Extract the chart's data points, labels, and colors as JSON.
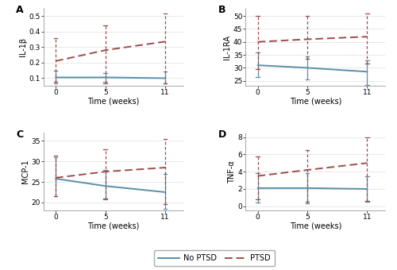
{
  "time": [
    0,
    5,
    11
  ],
  "panels": [
    {
      "label": "A",
      "ylabel": "IL-1β",
      "ylim": [
        0.05,
        0.55
      ],
      "yticks": [
        0.1,
        0.2,
        0.3,
        0.4,
        0.5
      ],
      "no_ptsd": {
        "mean": [
          0.105,
          0.105,
          0.1
        ],
        "ci_low": [
          0.065,
          0.075,
          0.065
        ],
        "ci_high": [
          0.15,
          0.135,
          0.145
        ]
      },
      "ptsd": {
        "mean": [
          0.21,
          0.28,
          0.335
        ],
        "ci_low": [
          0.075,
          0.065,
          0.065
        ],
        "ci_high": [
          0.355,
          0.44,
          0.515
        ]
      }
    },
    {
      "label": "B",
      "ylabel": "IL-1RA",
      "ylim": [
        23,
        53
      ],
      "yticks": [
        25,
        30,
        35,
        40,
        45,
        50
      ],
      "no_ptsd": {
        "mean": [
          31.0,
          30.0,
          28.5
        ],
        "ci_low": [
          26.5,
          25.5,
          23.5
        ],
        "ci_high": [
          36.0,
          34.5,
          33.0
        ]
      },
      "ptsd": {
        "mean": [
          40.0,
          41.0,
          42.0
        ],
        "ci_low": [
          29.5,
          33.5,
          31.5
        ],
        "ci_high": [
          50.0,
          50.0,
          51.0
        ]
      }
    },
    {
      "label": "C",
      "ylabel": "MCP-1",
      "ylim": [
        18,
        37
      ],
      "yticks": [
        20,
        25,
        30,
        35
      ],
      "no_ptsd": {
        "mean": [
          25.8,
          24.0,
          22.5
        ],
        "ci_low": [
          21.5,
          20.8,
          18.5
        ],
        "ci_high": [
          31.0,
          28.0,
          27.0
        ]
      },
      "ptsd": {
        "mean": [
          26.0,
          27.5,
          28.5
        ],
        "ci_low": [
          21.5,
          21.0,
          19.5
        ],
        "ci_high": [
          31.5,
          33.0,
          35.5
        ]
      }
    },
    {
      "label": "D",
      "ylabel": "TNF-α",
      "ylim": [
        -0.5,
        8.5
      ],
      "yticks": [
        0,
        2,
        4,
        6,
        8
      ],
      "no_ptsd": {
        "mean": [
          2.1,
          2.1,
          2.0
        ],
        "ci_low": [
          0.4,
          0.3,
          0.5
        ],
        "ci_high": [
          3.8,
          3.8,
          3.5
        ]
      },
      "ptsd": {
        "mean": [
          3.5,
          4.2,
          5.0
        ],
        "ci_low": [
          0.8,
          0.5,
          0.6
        ],
        "ci_high": [
          5.8,
          6.5,
          8.0
        ]
      }
    }
  ],
  "no_ptsd_color": "#5b8fa8",
  "ptsd_color": "#9e4c4c",
  "no_ptsd_label": "No PTSD",
  "ptsd_label": "PTSD",
  "xlabel": "Time (weeks)",
  "xticks": [
    0,
    5,
    11
  ],
  "background_color": "#ffffff",
  "grid_color": "#e0e0e0"
}
